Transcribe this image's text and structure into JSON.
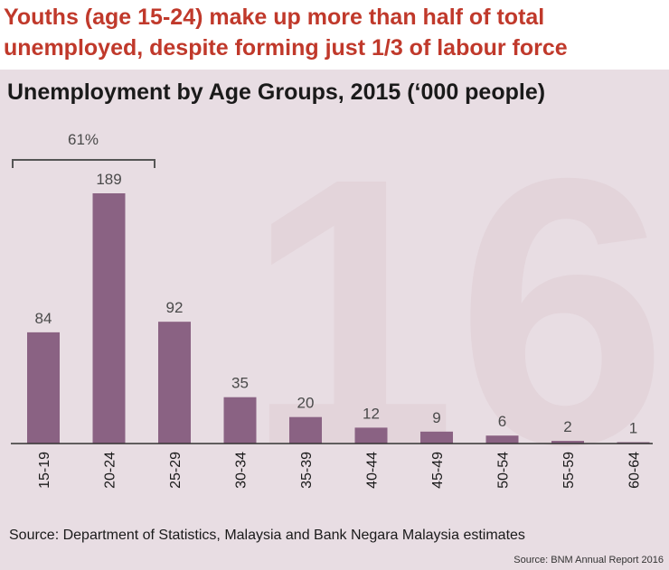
{
  "headline": "Youths (age 15-24) make up more than half of total unemployed, despite forming just 1/3 of labour force",
  "watermark": "16",
  "chart_data": {
    "type": "bar",
    "title": "Unemployment by Age Groups, 2015 (‘000 people)",
    "categories": [
      "15-19",
      "20-24",
      "25-29",
      "30-34",
      "35-39",
      "40-44",
      "45-49",
      "50-54",
      "55-59",
      "60-64"
    ],
    "values": [
      84,
      189,
      92,
      35,
      20,
      12,
      9,
      6,
      2,
      1
    ],
    "ylim": [
      0,
      189
    ],
    "bar_color": "#8a6283",
    "annotation": {
      "text": "61%",
      "spans": [
        "15-19",
        "20-24"
      ]
    },
    "grid": false,
    "legend": "none"
  },
  "source": "Source: Department of Statistics, Malaysia and Bank Negara Malaysia estimates",
  "credit": "Source: BNM Annual Report 2016"
}
